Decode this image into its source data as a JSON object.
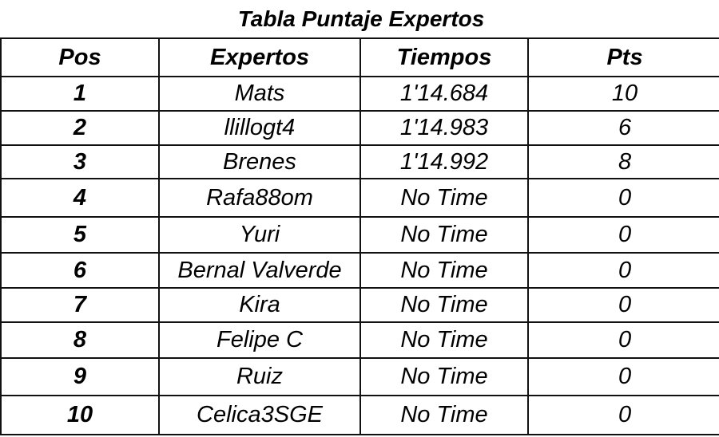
{
  "title": "Tabla Puntaje Expertos",
  "columns": [
    "Pos",
    "Expertos",
    "Tiempos",
    "Pts"
  ],
  "rows": [
    {
      "pos": "1",
      "name": "Mats",
      "time": "1'14.684",
      "pts": "10"
    },
    {
      "pos": "2",
      "name": "llillogt4",
      "time": "1'14.983",
      "pts": "6"
    },
    {
      "pos": "3",
      "name": "Brenes",
      "time": "1'14.992",
      "pts": "8"
    },
    {
      "pos": "4",
      "name": "Rafa88om",
      "time": "No Time",
      "pts": "0"
    },
    {
      "pos": "5",
      "name": "Yuri",
      "time": "No Time",
      "pts": "0"
    },
    {
      "pos": "6",
      "name": "Bernal Valverde",
      "time": "No Time",
      "pts": "0"
    },
    {
      "pos": "7",
      "name": "Kira",
      "time": "No Time",
      "pts": "0"
    },
    {
      "pos": "8",
      "name": "Felipe C",
      "time": "No Time",
      "pts": "0"
    },
    {
      "pos": "9",
      "name": "Ruiz",
      "time": "No Time",
      "pts": "0"
    },
    {
      "pos": "10",
      "name": "Celica3SGE",
      "time": "No Time",
      "pts": "0"
    }
  ]
}
